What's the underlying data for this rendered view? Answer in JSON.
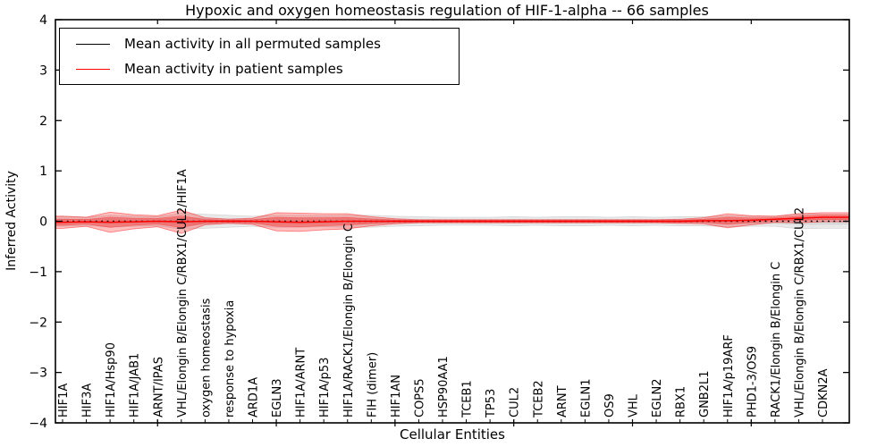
{
  "title": "Hypoxic and oxygen homeostasis regulation of HIF-1-alpha -- 66 samples",
  "axes": {
    "xlabel": "Cellular Entities",
    "ylabel": "Inferred Activity"
  },
  "legend": {
    "items": [
      {
        "label": "Mean activity in all permuted samples",
        "color": "#000000"
      },
      {
        "label": "Mean activity in patient samples",
        "color": "#ff0000"
      }
    ]
  },
  "chart_data": {
    "type": "line",
    "title": "Hypoxic and oxygen homeostasis regulation of HIF-1-alpha -- 66 samples",
    "xlabel": "Cellular Entities",
    "ylabel": "Inferred Activity",
    "ylim": [
      -4,
      4
    ],
    "yticks": [
      4,
      3,
      2,
      1,
      0,
      -1,
      -2,
      -3,
      -4
    ],
    "grid": false,
    "legend_position": "upper-left",
    "categories": [
      "HIF1A",
      "HIF3A",
      "HIF1A/Hsp90",
      "HIF1A/JAB1",
      "ARNT/IPAS",
      "VHL/Elongin B/Elongin C/RBX1/CUL2/HIF1A",
      "oxygen homeostasis",
      "response to hypoxia",
      "ARD1A",
      "EGLN3",
      "HIF1A/ARNT",
      "HIF1A/p53",
      "HIF1A/RACK1/Elongin B/Elongin C",
      "FIH (dimer)",
      "HIF1AN",
      "COPS5",
      "HSP90AA1",
      "TCEB1",
      "TP53",
      "CUL2",
      "TCEB2",
      "ARNT",
      "EGLN1",
      "OS9",
      "VHL",
      "EGLN2",
      "RBX1",
      "GNB2L1",
      "HIF1A/p19ARF",
      "PHD1-3/OS9",
      "RACK1/Elongin B/Elongin C",
      "VHL/Elongin B/Elongin C/RBX1/CUL2",
      "CDKN2A"
    ],
    "series": [
      {
        "name": "Mean activity in all permuted samples",
        "color": "#000000",
        "line_style": "dotted",
        "band_fill": "#999999",
        "mean": [
          0,
          0,
          0,
          0,
          0,
          0,
          0,
          0,
          0,
          0,
          0,
          0,
          0,
          0,
          0,
          0,
          0,
          0,
          0,
          0,
          0,
          0,
          0,
          0,
          0,
          0,
          0,
          0,
          0,
          0,
          0,
          0,
          0
        ],
        "band": [
          0.1,
          0.08,
          0.12,
          0.1,
          0.09,
          0.16,
          0.14,
          0.12,
          0.1,
          0.12,
          0.12,
          0.11,
          0.12,
          0.12,
          0.1,
          0.09,
          0.08,
          0.08,
          0.08,
          0.09,
          0.08,
          0.09,
          0.09,
          0.08,
          0.09,
          0.08,
          0.09,
          0.09,
          0.11,
          0.1,
          0.1,
          0.15,
          0.14
        ]
      },
      {
        "name": "Mean activity in patient samples",
        "color": "#ff0000",
        "line_style": "solid",
        "band_fill": "#ff0000",
        "mean": [
          -0.02,
          -0.01,
          -0.02,
          -0.01,
          0,
          -0.01,
          0,
          0,
          0,
          -0.01,
          -0.02,
          -0.01,
          0,
          0,
          0,
          0,
          0,
          0,
          0,
          0,
          0,
          0,
          0,
          0,
          0,
          0,
          0,
          0.01,
          0.01,
          0.02,
          0.04,
          0.06,
          0.08
        ],
        "band": [
          0.12,
          0.09,
          0.2,
          0.14,
          0.11,
          0.23,
          0.07,
          0.04,
          0.06,
          0.18,
          0.18,
          0.16,
          0.15,
          0.09,
          0.05,
          0.03,
          0.03,
          0.03,
          0.03,
          0.03,
          0.03,
          0.03,
          0.03,
          0.03,
          0.03,
          0.03,
          0.04,
          0.06,
          0.14,
          0.09,
          0.06,
          0.09,
          0.09
        ]
      }
    ],
    "x_major_tick_indices": [
      4,
      9,
      14,
      19,
      24,
      29
    ]
  }
}
